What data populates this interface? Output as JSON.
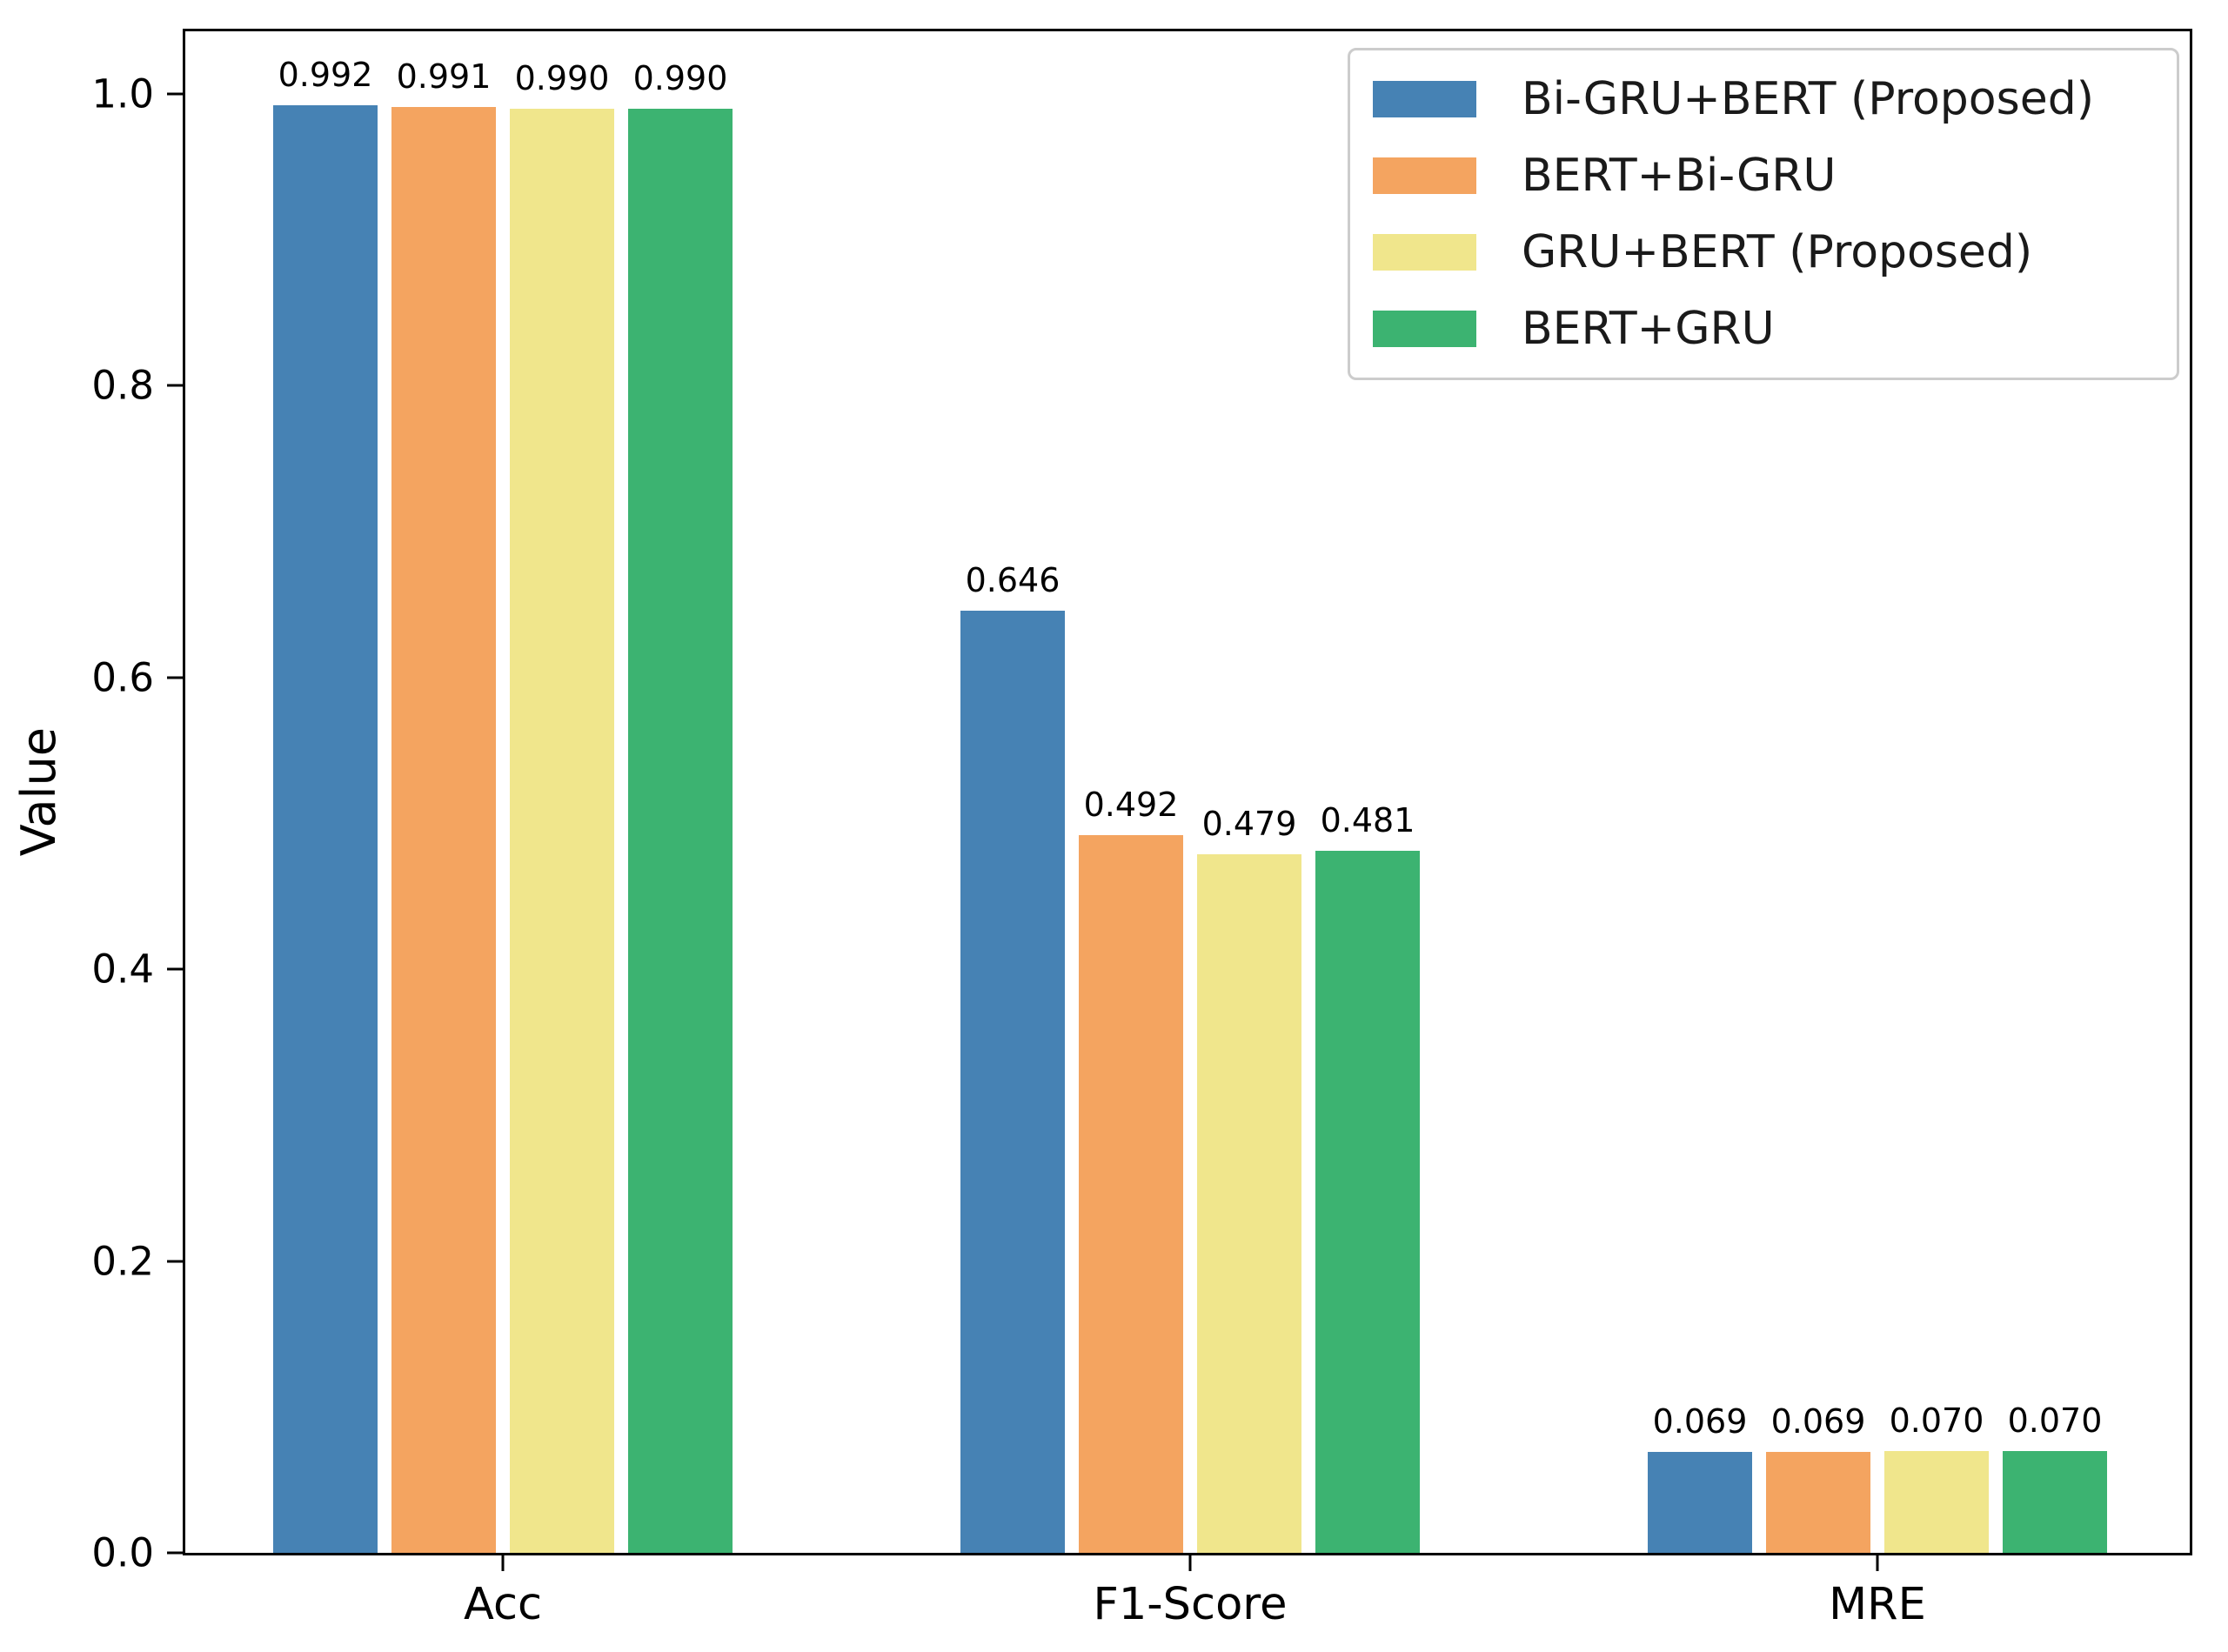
{
  "chart_data": {
    "type": "bar",
    "title": "",
    "xlabel": "",
    "ylabel": "Value",
    "categories": [
      "Acc",
      "F1-Score",
      "MRE"
    ],
    "series": [
      {
        "name": "Bi-GRU+BERT (Proposed)",
        "color": "#4682b4",
        "values": [
          0.992,
          0.646,
          0.069
        ],
        "labels": [
          "0.992",
          "0.646",
          "0.069"
        ]
      },
      {
        "name": "BERT+Bi-GRU",
        "color": "#f4a460",
        "values": [
          0.991,
          0.492,
          0.069
        ],
        "labels": [
          "0.991",
          "0.492",
          "0.069"
        ]
      },
      {
        "name": "GRU+BERT (Proposed)",
        "color": "#f0e68c",
        "values": [
          0.99,
          0.479,
          0.07
        ],
        "labels": [
          "0.990",
          "0.479",
          "0.070"
        ]
      },
      {
        "name": "BERT+GRU",
        "color": "#3cb371",
        "values": [
          0.99,
          0.481,
          0.07
        ],
        "labels": [
          "0.990",
          "0.481",
          "0.070"
        ]
      }
    ],
    "yticks": [
      "0.0",
      "0.2",
      "0.4",
      "0.6",
      "0.8",
      "1.0"
    ],
    "ytick_values": [
      0.0,
      0.2,
      0.4,
      0.6,
      0.8,
      1.0
    ],
    "ylim": [
      0,
      1.0428
    ],
    "legend_position": "upper right",
    "grid": false,
    "bar_value_labels": true,
    "axis_color": "#000000",
    "legend_border_color": "#cccccc"
  }
}
